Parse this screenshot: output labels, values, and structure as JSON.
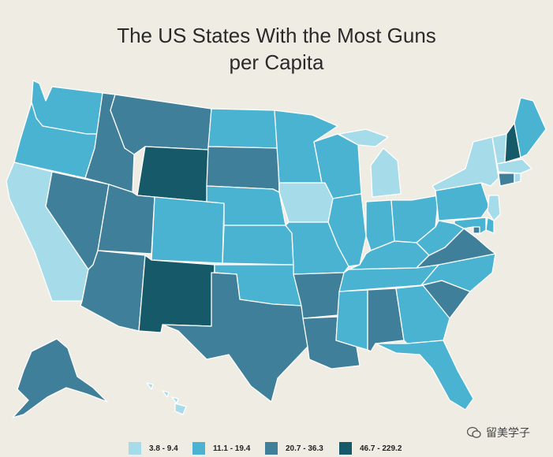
{
  "title": {
    "line1": "The US States With the Most Guns",
    "line2": "per Capita"
  },
  "colors": {
    "c1": "#a6dbe9",
    "c2": "#4ab3d1",
    "c3": "#3f7f99",
    "c4": "#165a6a",
    "border": "#ffffff",
    "background": "#efece4"
  },
  "legend": [
    {
      "label": "3.8 - 9.4",
      "class": "c1"
    },
    {
      "label": "11.1 - 19.4",
      "class": "c2"
    },
    {
      "label": "20.7 - 36.3",
      "class": "c3"
    },
    {
      "label": "46.7 - 229.2",
      "class": "c4"
    }
  ],
  "states": {
    "WA": "c2",
    "OR": "c2",
    "CA": "c1",
    "NV": "c3",
    "ID": "c3",
    "MT": "c3",
    "WY": "c4",
    "UT": "c3",
    "AZ": "c3",
    "NM": "c4",
    "CO": "c2",
    "ND": "c2",
    "SD": "c3",
    "NE": "c2",
    "KS": "c2",
    "OK": "c2",
    "TX": "c3",
    "MN": "c2",
    "IA": "c1",
    "MO": "c2",
    "AR": "c3",
    "LA": "c3",
    "WI": "c2",
    "IL": "c2",
    "MI": "c1",
    "IN": "c2",
    "OH": "c2",
    "KY": "c2",
    "TN": "c2",
    "MS": "c2",
    "AL": "c3",
    "GA": "c2",
    "FL": "c2",
    "SC": "c3",
    "NC": "c2",
    "VA": "c3",
    "WV": "c2",
    "PA": "c2",
    "NY": "c1",
    "VT": "c1",
    "NH": "c4",
    "ME": "c2",
    "MA": "c1",
    "CT": "c3",
    "RI": "c1",
    "NJ": "c1",
    "DE": "c2",
    "MD": "c2",
    "DC": "c3",
    "AK": "c3",
    "HI": "c1"
  },
  "watermark": "留美学子"
}
